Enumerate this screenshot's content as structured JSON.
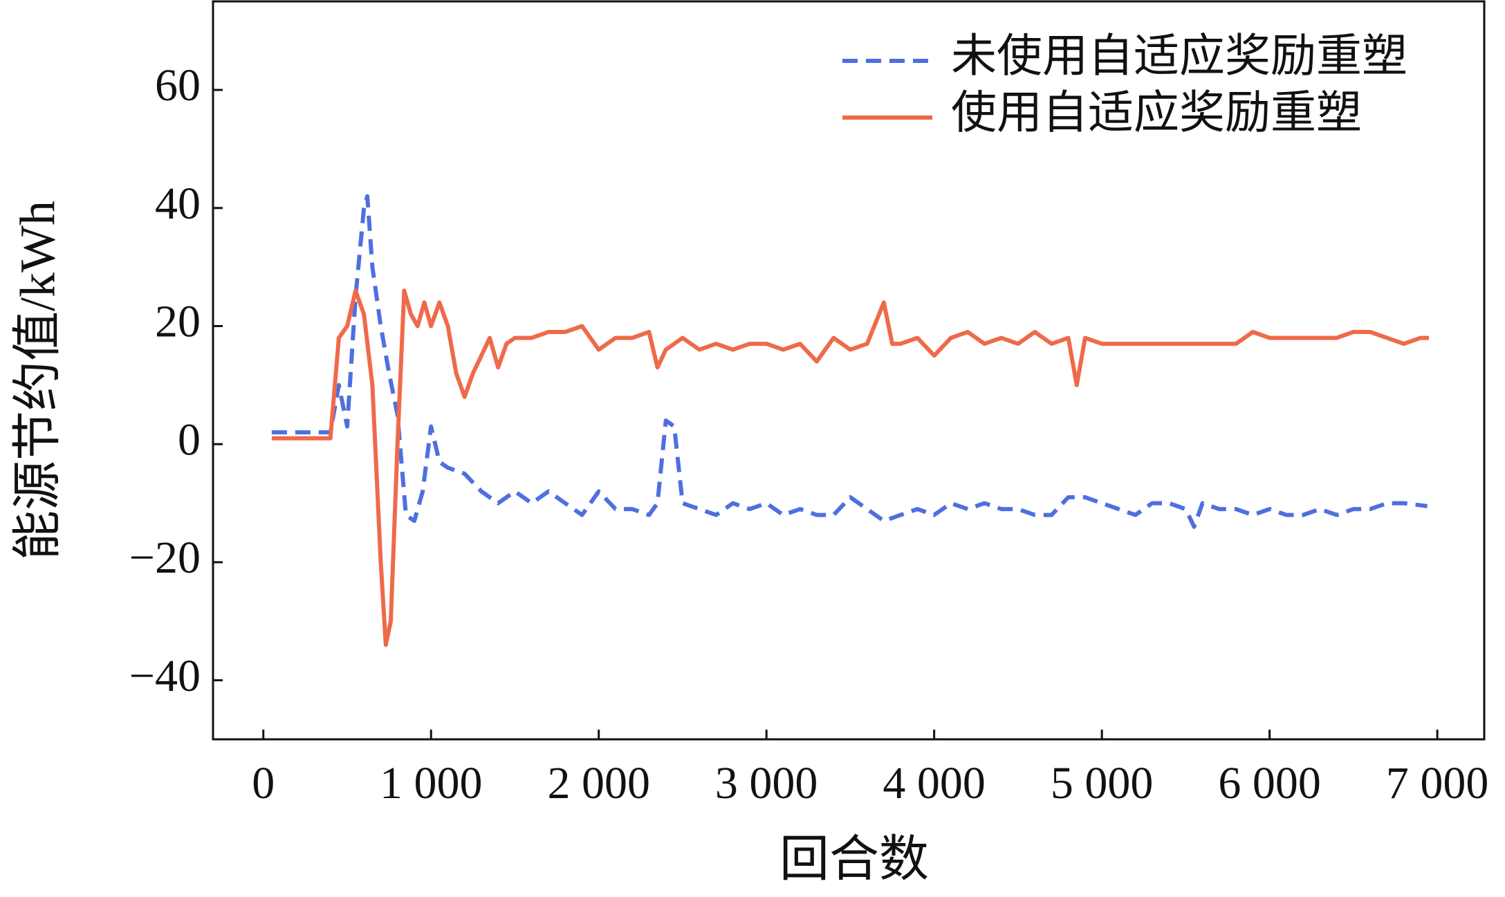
{
  "chart_data": {
    "type": "line",
    "xlabel": "回合数",
    "ylabel": "能源节约值/kWh",
    "xlim": [
      -300,
      7280
    ],
    "ylim": [
      -50,
      75
    ],
    "xticks": [
      0,
      {
        "value": 1000,
        "label": "1 000"
      },
      {
        "value": 2000,
        "label": "2 000"
      },
      {
        "value": 3000,
        "label": "3 000"
      },
      {
        "value": 4000,
        "label": "4 000"
      },
      {
        "value": 5000,
        "label": "5 000"
      },
      {
        "value": 6000,
        "label": "6 000"
      },
      {
        "value": 7000,
        "label": "7 000"
      }
    ],
    "yticks": [
      {
        "value": -40,
        "label": "−40"
      },
      {
        "value": -20,
        "label": "−20"
      },
      0,
      20,
      40,
      60
    ],
    "legend": "upper right",
    "series": [
      {
        "name": "未使用自适应奖励重塑",
        "color": "#4f6fe0",
        "dashed": true,
        "x": [
          50,
          100,
          200,
          300,
          400,
          450,
          500,
          550,
          600,
          620,
          650,
          700,
          750,
          800,
          850,
          900,
          950,
          1000,
          1050,
          1100,
          1200,
          1300,
          1400,
          1500,
          1600,
          1700,
          1800,
          1900,
          2000,
          2100,
          2200,
          2300,
          2350,
          2400,
          2450,
          2500,
          2600,
          2700,
          2800,
          2900,
          3000,
          3100,
          3200,
          3300,
          3400,
          3500,
          3600,
          3700,
          3800,
          3900,
          4000,
          4100,
          4200,
          4300,
          4400,
          4500,
          4600,
          4700,
          4800,
          4900,
          5000,
          5100,
          5200,
          5300,
          5400,
          5500,
          5550,
          5600,
          5700,
          5800,
          5900,
          6000,
          6100,
          6200,
          6300,
          6400,
          6500,
          6600,
          6700,
          6800,
          6940
        ],
        "values": [
          2,
          2,
          2,
          2,
          2,
          10,
          3,
          25,
          40,
          42,
          30,
          20,
          12,
          5,
          -12,
          -13,
          -8,
          3,
          -3,
          -4,
          -5,
          -8,
          -10,
          -8,
          -10,
          -8,
          -10,
          -12,
          -8,
          -11,
          -11,
          -12,
          -10,
          4,
          3,
          -10,
          -11,
          -12,
          -10,
          -11,
          -10,
          -12,
          -11,
          -12,
          -12,
          -9,
          -11,
          -13,
          -12,
          -11,
          -12,
          -10,
          -11,
          -10,
          -11,
          -11,
          -12,
          -12,
          -9,
          -9,
          -10,
          -11,
          -12,
          -10,
          -10,
          -11,
          -14,
          -10,
          -11,
          -11,
          -12,
          -11,
          -12,
          -12,
          -11,
          -12,
          -11,
          -11,
          -10,
          -10,
          -10.5
        ]
      },
      {
        "name": "使用自适应奖励重塑",
        "color": "#ee6a4a",
        "dashed": false,
        "x": [
          50,
          400,
          450,
          500,
          550,
          600,
          650,
          700,
          730,
          760,
          800,
          840,
          880,
          920,
          960,
          1000,
          1050,
          1100,
          1150,
          1200,
          1250,
          1300,
          1350,
          1400,
          1450,
          1500,
          1600,
          1700,
          1800,
          1900,
          2000,
          2100,
          2200,
          2300,
          2350,
          2400,
          2500,
          2600,
          2700,
          2800,
          2900,
          3000,
          3100,
          3200,
          3300,
          3400,
          3500,
          3600,
          3700,
          3750,
          3800,
          3900,
          4000,
          4100,
          4200,
          4300,
          4400,
          4500,
          4600,
          4700,
          4800,
          4850,
          4900,
          5000,
          5200,
          5400,
          5600,
          5800,
          5900,
          6000,
          6100,
          6200,
          6400,
          6500,
          6600,
          6700,
          6800,
          6900,
          6950
        ],
        "values": [
          1,
          1,
          18,
          20,
          26,
          22,
          10,
          -20,
          -34,
          -30,
          0,
          26,
          22,
          20,
          24,
          20,
          24,
          20,
          12,
          8,
          12,
          15,
          18,
          13,
          17,
          18,
          18,
          19,
          19,
          20,
          16,
          18,
          18,
          19,
          13,
          16,
          18,
          16,
          17,
          16,
          17,
          17,
          16,
          17,
          14,
          18,
          16,
          17,
          24,
          17,
          17,
          18,
          15,
          18,
          19,
          17,
          18,
          17,
          19,
          17,
          18,
          10,
          18,
          17,
          17,
          17,
          17,
          17,
          19,
          18,
          18,
          18,
          18,
          19,
          19,
          18,
          17,
          18,
          18
        ]
      }
    ]
  }
}
